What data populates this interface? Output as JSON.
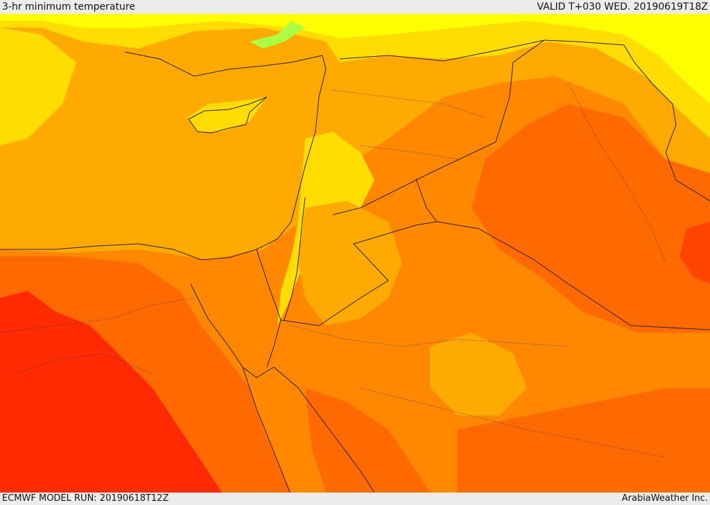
{
  "header": {
    "title": "3-hr minimum temperature",
    "valid": "VALID T+030 WED. 20190619T18Z"
  },
  "footer": {
    "model_run": "ECMWF MODEL RUN: 20190618T12Z",
    "credit": "ArabiaWeather Inc."
  },
  "colors": {
    "yellow": "#ffff00",
    "gold": "#ffdd00",
    "amber": "#ffaa00",
    "orange": "#ff8800",
    "dark_orange": "#ff6a00",
    "red_orange": "#ff4400",
    "red": "#ff2a00",
    "green_patch": "#aaff44",
    "background": "#ececec"
  }
}
